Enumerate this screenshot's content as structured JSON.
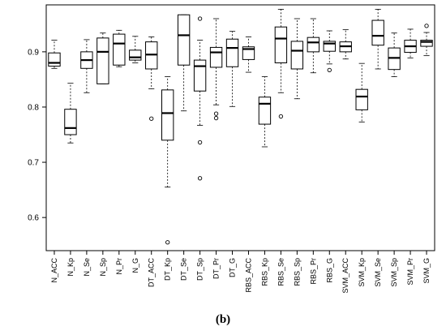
{
  "caption": "(b)",
  "chart_data": {
    "type": "boxplot",
    "ylim": [
      0.54,
      0.985
    ],
    "yticks": [
      0.6,
      0.7,
      0.8,
      0.9
    ],
    "ytick_labels": [
      "0.6",
      "0.7",
      "0.8",
      "0.9"
    ],
    "categories": [
      "N_ACC",
      "N_Kp",
      "N_Se",
      "N_Sp",
      "N_Pr",
      "N_G",
      "DT_ACC",
      "DT_Kp",
      "DT_Se",
      "DT_Sp",
      "DT_Pr",
      "DT_G",
      "RBS_ACC",
      "RBS_Kp",
      "RBS_Se",
      "RBS_Sp",
      "RBS_Pr",
      "RBS_G",
      "SVM_ACC",
      "SVM_Kp",
      "SVM_Se",
      "SVM_Sp",
      "SVM_Pr",
      "SVM_G"
    ],
    "boxes": [
      {
        "whisker_low": 0.87,
        "q1": 0.874,
        "median": 0.88,
        "q3": 0.898,
        "whisker_high": 0.921,
        "outliers": []
      },
      {
        "whisker_low": 0.735,
        "q1": 0.75,
        "median": 0.762,
        "q3": 0.796,
        "whisker_high": 0.843,
        "outliers": []
      },
      {
        "whisker_low": 0.826,
        "q1": 0.87,
        "median": 0.885,
        "q3": 0.9,
        "whisker_high": 0.922,
        "outliers": []
      },
      {
        "whisker_low": 0.842,
        "q1": 0.842,
        "median": 0.9,
        "q3": 0.925,
        "whisker_high": 0.934,
        "outliers": []
      },
      {
        "whisker_low": 0.873,
        "q1": 0.876,
        "median": 0.915,
        "q3": 0.932,
        "whisker_high": 0.939,
        "outliers": []
      },
      {
        "whisker_low": 0.88,
        "q1": 0.885,
        "median": 0.89,
        "q3": 0.903,
        "whisker_high": 0.928,
        "outliers": []
      },
      {
        "whisker_low": 0.833,
        "q1": 0.869,
        "median": 0.895,
        "q3": 0.918,
        "whisker_high": 0.927,
        "outliers": [
          0.779
        ]
      },
      {
        "whisker_low": 0.655,
        "q1": 0.74,
        "median": 0.789,
        "q3": 0.831,
        "whisker_high": 0.855,
        "outliers": [
          0.555
        ]
      },
      {
        "whisker_low": 0.793,
        "q1": 0.876,
        "median": 0.93,
        "q3": 0.967,
        "whisker_high": 0.967,
        "outliers": []
      },
      {
        "whisker_low": 0.767,
        "q1": 0.829,
        "median": 0.874,
        "q3": 0.885,
        "whisker_high": 0.921,
        "outliers": [
          0.96,
          0.736,
          0.671
        ]
      },
      {
        "whisker_low": 0.804,
        "q1": 0.872,
        "median": 0.899,
        "q3": 0.908,
        "whisker_high": 0.96,
        "outliers": [
          0.788,
          0.78
        ]
      },
      {
        "whisker_low": 0.801,
        "q1": 0.873,
        "median": 0.907,
        "q3": 0.923,
        "whisker_high": 0.937,
        "outliers": []
      },
      {
        "whisker_low": 0.863,
        "q1": 0.886,
        "median": 0.905,
        "q3": 0.909,
        "whisker_high": 0.927,
        "outliers": []
      },
      {
        "whisker_low": 0.728,
        "q1": 0.769,
        "median": 0.806,
        "q3": 0.818,
        "whisker_high": 0.855,
        "outliers": []
      },
      {
        "whisker_low": 0.826,
        "q1": 0.88,
        "median": 0.924,
        "q3": 0.945,
        "whisker_high": 0.977,
        "outliers": [
          0.783
        ]
      },
      {
        "whisker_low": 0.815,
        "q1": 0.869,
        "median": 0.902,
        "q3": 0.919,
        "whisker_high": 0.96,
        "outliers": []
      },
      {
        "whisker_low": 0.862,
        "q1": 0.9,
        "median": 0.917,
        "q3": 0.926,
        "whisker_high": 0.96,
        "outliers": []
      },
      {
        "whisker_low": 0.878,
        "q1": 0.901,
        "median": 0.915,
        "q3": 0.919,
        "whisker_high": 0.938,
        "outliers": [
          0.867
        ]
      },
      {
        "whisker_low": 0.887,
        "q1": 0.9,
        "median": 0.91,
        "q3": 0.918,
        "whisker_high": 0.94,
        "outliers": []
      },
      {
        "whisker_low": 0.773,
        "q1": 0.795,
        "median": 0.819,
        "q3": 0.832,
        "whisker_high": 0.879,
        "outliers": []
      },
      {
        "whisker_low": 0.869,
        "q1": 0.912,
        "median": 0.929,
        "q3": 0.957,
        "whisker_high": 0.977,
        "outliers": []
      },
      {
        "whisker_low": 0.855,
        "q1": 0.868,
        "median": 0.889,
        "q3": 0.907,
        "whisker_high": 0.934,
        "outliers": []
      },
      {
        "whisker_low": 0.889,
        "q1": 0.899,
        "median": 0.91,
        "q3": 0.921,
        "whisker_high": 0.941,
        "outliers": []
      },
      {
        "whisker_low": 0.893,
        "q1": 0.91,
        "median": 0.918,
        "q3": 0.921,
        "whisker_high": 0.935,
        "outliers": [
          0.947
        ]
      }
    ],
    "grid": false,
    "legend": "none"
  }
}
